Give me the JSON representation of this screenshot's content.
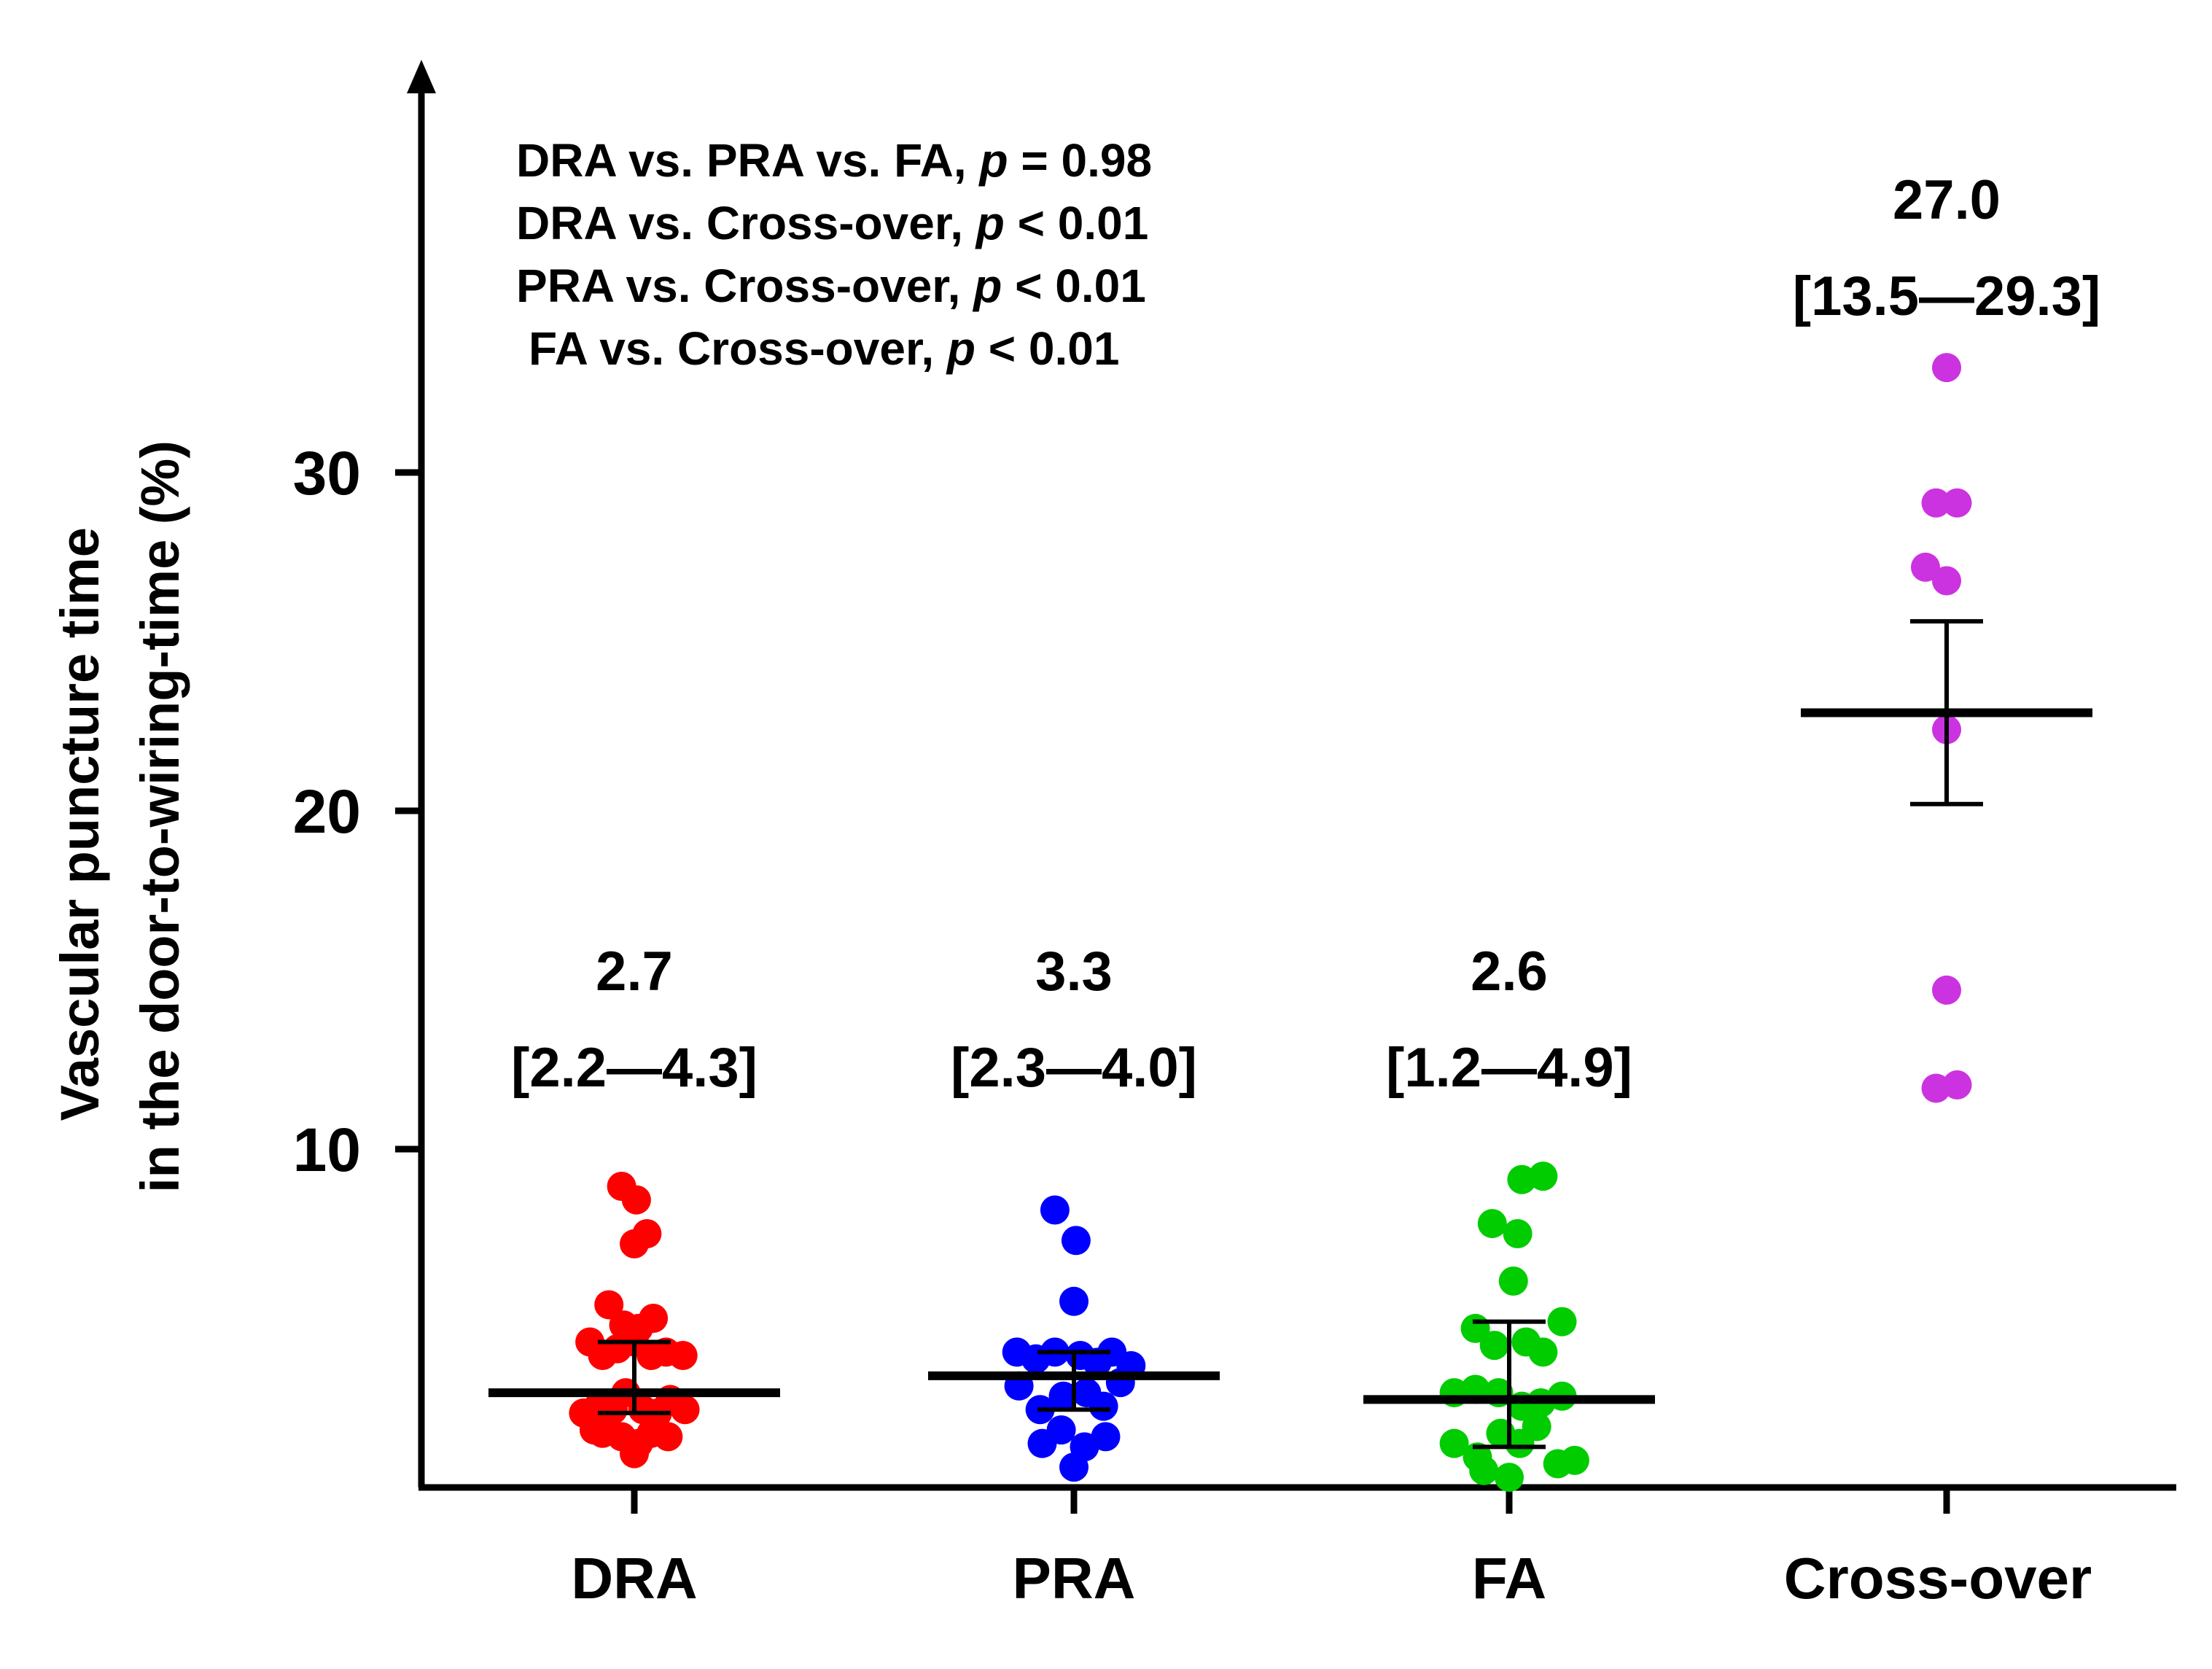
{
  "chart_data": {
    "type": "scatter",
    "subtype": "dot-plot-mean-sem",
    "ylabel_lines": [
      "Vascular puncture time",
      "in the door-to-wiring-time  (%)"
    ],
    "xlabel": "",
    "ylim": [
      0,
      42
    ],
    "yticks": [
      10,
      20,
      30
    ],
    "grid": false,
    "stats_annotations": [
      {
        "text": "DRA vs. PRA vs. FA, ",
        "p_symbol": "p",
        "rest": " = 0.98"
      },
      {
        "text": "DRA vs. Cross-over, ",
        "p_symbol": "p",
        "rest": " < 0.01"
      },
      {
        "text": "PRA vs. Cross-over, ",
        "p_symbol": "p",
        "rest": " < 0.01"
      },
      {
        "text": "FA   vs. Cross-over, ",
        "p_symbol": "p",
        "rest": " < 0.01"
      }
    ],
    "series": [
      {
        "name": "DRA",
        "color": "#ff0000",
        "median_label": "2.7",
        "iqr_label": "[2.2—4.3]",
        "mean": 2.8,
        "sem_low": 2.2,
        "sem_high": 4.3,
        "points": [
          {
            "offset": -0.6,
            "y": 8.9
          },
          {
            "offset": 0.1,
            "y": 8.5
          },
          {
            "offset": 0.0,
            "y": 7.2
          },
          {
            "offset": 0.6,
            "y": 7.5
          },
          {
            "offset": -1.2,
            "y": 5.4
          },
          {
            "offset": -0.5,
            "y": 4.8
          },
          {
            "offset": 0.2,
            "y": 4.7
          },
          {
            "offset": 0.9,
            "y": 5.0
          },
          {
            "offset": -2.1,
            "y": 4.3
          },
          {
            "offset": -1.5,
            "y": 3.9
          },
          {
            "offset": -0.8,
            "y": 4.1
          },
          {
            "offset": 0.0,
            "y": 4.3
          },
          {
            "offset": 0.8,
            "y": 3.9
          },
          {
            "offset": 1.5,
            "y": 4.0
          },
          {
            "offset": 2.3,
            "y": 3.9
          },
          {
            "offset": -2.4,
            "y": 2.2
          },
          {
            "offset": -1.7,
            "y": 2.4
          },
          {
            "offset": -1.0,
            "y": 2.3
          },
          {
            "offset": -0.4,
            "y": 2.8
          },
          {
            "offset": 0.4,
            "y": 2.3
          },
          {
            "offset": 1.1,
            "y": 2.2
          },
          {
            "offset": 1.7,
            "y": 2.6
          },
          {
            "offset": 2.4,
            "y": 2.3
          },
          {
            "offset": -1.5,
            "y": 1.6
          },
          {
            "offset": -0.6,
            "y": 1.5
          },
          {
            "offset": 0.2,
            "y": 1.3
          },
          {
            "offset": 0.8,
            "y": 1.6
          },
          {
            "offset": 1.6,
            "y": 1.5
          },
          {
            "offset": -1.9,
            "y": 1.7
          },
          {
            "offset": 0.0,
            "y": 1.0
          }
        ]
      },
      {
        "name": "PRA",
        "color": "#0000ff",
        "median_label": "3.3",
        "iqr_label": "[2.3—4.0]",
        "mean": 3.3,
        "sem_low": 2.3,
        "sem_high": 4.0,
        "points": [
          {
            "offset": -0.9,
            "y": 8.2
          },
          {
            "offset": 0.1,
            "y": 7.3
          },
          {
            "offset": 0.0,
            "y": 5.5
          },
          {
            "offset": -2.7,
            "y": 4.0
          },
          {
            "offset": -1.8,
            "y": 3.8
          },
          {
            "offset": -0.9,
            "y": 4.0
          },
          {
            "offset": 0.3,
            "y": 3.9
          },
          {
            "offset": 1.1,
            "y": 3.7
          },
          {
            "offset": 1.8,
            "y": 4.0
          },
          {
            "offset": 2.7,
            "y": 3.6
          },
          {
            "offset": -2.6,
            "y": 3.0
          },
          {
            "offset": -1.6,
            "y": 2.3
          },
          {
            "offset": -0.5,
            "y": 2.7
          },
          {
            "offset": 0.6,
            "y": 2.8
          },
          {
            "offset": 1.4,
            "y": 2.4
          },
          {
            "offset": 2.2,
            "y": 3.1
          },
          {
            "offset": -1.5,
            "y": 1.3
          },
          {
            "offset": -0.6,
            "y": 1.7
          },
          {
            "offset": 0.5,
            "y": 1.2
          },
          {
            "offset": 1.5,
            "y": 1.5
          },
          {
            "offset": 0.0,
            "y": 0.6
          }
        ]
      },
      {
        "name": "FA",
        "color": "#00cc00",
        "median_label": "2.6",
        "iqr_label": "[1.2—4.9]",
        "mean": 2.6,
        "sem_low": 1.2,
        "sem_high": 4.9,
        "points": [
          {
            "offset": 0.6,
            "y": 9.1
          },
          {
            "offset": 1.6,
            "y": 9.2
          },
          {
            "offset": -0.8,
            "y": 7.8
          },
          {
            "offset": 0.4,
            "y": 7.5
          },
          {
            "offset": 0.2,
            "y": 6.1
          },
          {
            "offset": -1.6,
            "y": 4.7
          },
          {
            "offset": 1.6,
            "y": 4.0
          },
          {
            "offset": 2.5,
            "y": 4.9
          },
          {
            "offset": -0.7,
            "y": 4.2
          },
          {
            "offset": 0.8,
            "y": 4.3
          },
          {
            "offset": -2.6,
            "y": 2.8
          },
          {
            "offset": -1.6,
            "y": 2.9
          },
          {
            "offset": -0.5,
            "y": 2.8
          },
          {
            "offset": 0.6,
            "y": 2.4
          },
          {
            "offset": 1.5,
            "y": 2.5
          },
          {
            "offset": 2.5,
            "y": 2.7
          },
          {
            "offset": -2.6,
            "y": 1.3
          },
          {
            "offset": -1.5,
            "y": 0.9
          },
          {
            "offset": -0.4,
            "y": 1.6
          },
          {
            "offset": 0.5,
            "y": 1.3
          },
          {
            "offset": 1.3,
            "y": 1.8
          },
          {
            "offset": 2.3,
            "y": 0.7
          },
          {
            "offset": 3.1,
            "y": 0.8
          },
          {
            "offset": 0.0,
            "y": 0.3
          },
          {
            "offset": -1.2,
            "y": 0.5
          }
        ]
      },
      {
        "name": "Cross-over",
        "color": "#cc33e0",
        "median_label": "27.0",
        "iqr_label": "[13.5—29.3]",
        "mean": 22.9,
        "sem_low": 20.2,
        "sem_high": 25.6,
        "points": [
          {
            "offset": 0.0,
            "y": 33.1
          },
          {
            "offset": -0.5,
            "y": 29.1
          },
          {
            "offset": 0.5,
            "y": 29.1
          },
          {
            "offset": -1.0,
            "y": 27.2
          },
          {
            "offset": 0.0,
            "y": 26.8
          },
          {
            "offset": 0.0,
            "y": 22.4
          },
          {
            "offset": 0.0,
            "y": 14.7
          },
          {
            "offset": -0.5,
            "y": 11.8
          },
          {
            "offset": 0.5,
            "y": 11.9
          }
        ]
      }
    ]
  }
}
